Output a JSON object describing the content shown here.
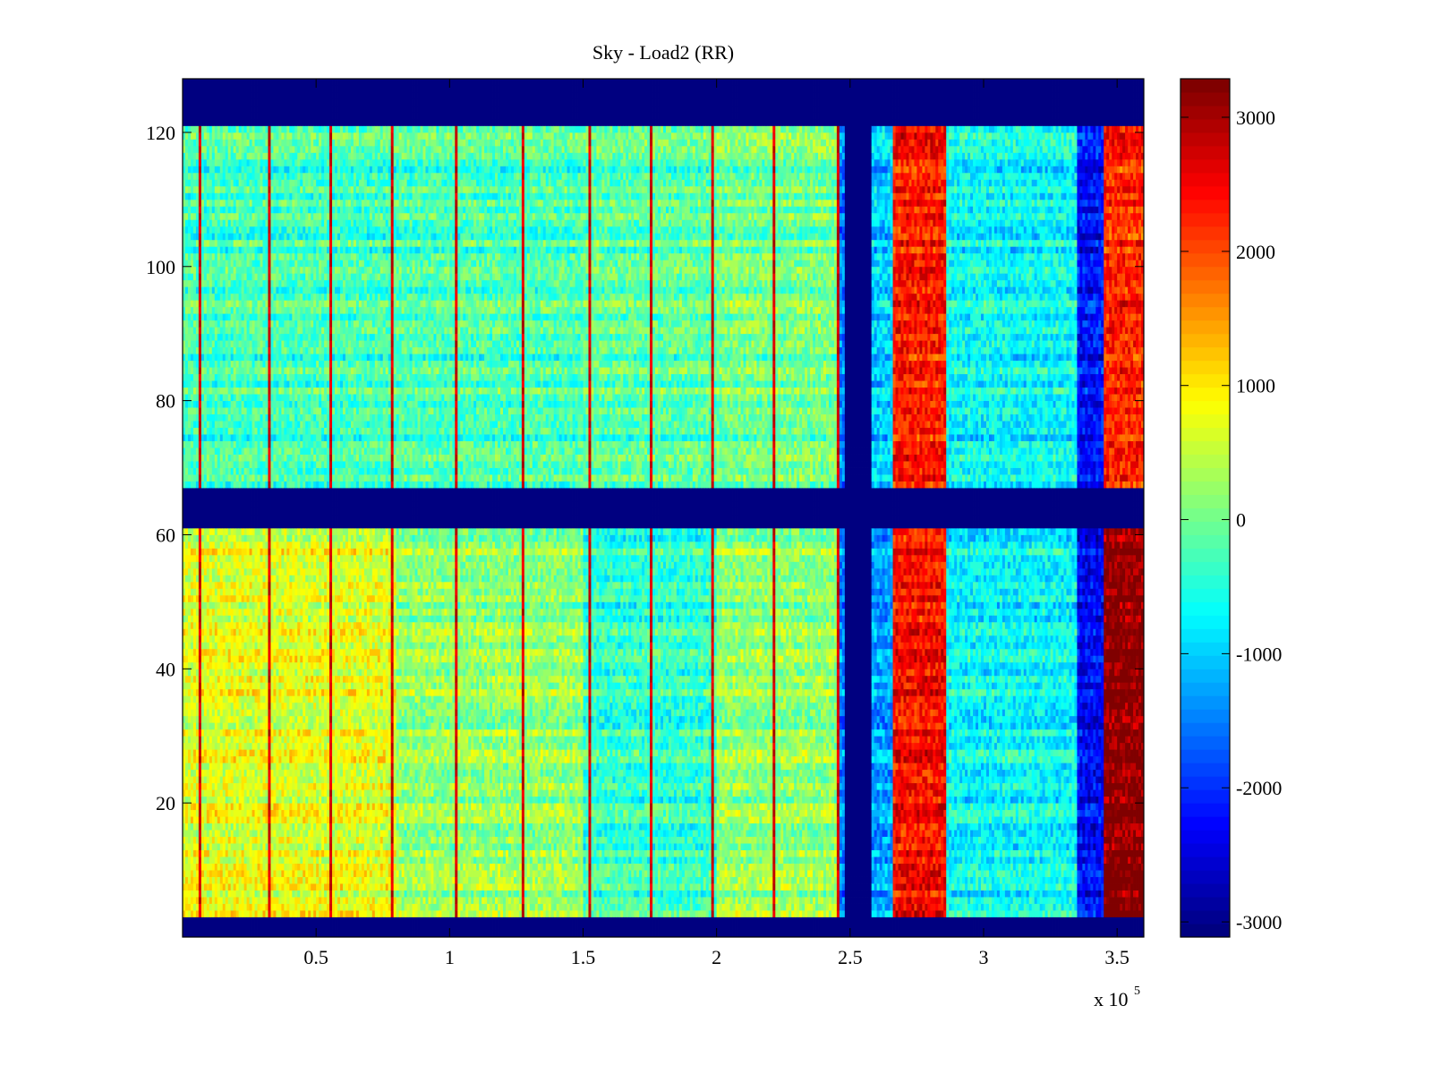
{
  "chart_data": {
    "type": "heatmap",
    "title": "Sky - Load2 (RR)",
    "xlabel": "",
    "ylabel": "",
    "x_exponent_label": "x 10",
    "x_exponent_power": "5",
    "xlim": [
      0,
      3.6
    ],
    "ylim": [
      0,
      128
    ],
    "x_ticks": [
      0.5,
      1,
      1.5,
      2,
      2.5,
      3,
      3.5
    ],
    "x_tick_labels": [
      "0.5",
      "1",
      "1.5",
      "2",
      "2.5",
      "3",
      "3.5"
    ],
    "y_ticks": [
      20,
      40,
      60,
      80,
      100,
      120
    ],
    "y_tick_labels": [
      "20",
      "40",
      "60",
      "80",
      "100",
      "120"
    ],
    "colormap": "jet",
    "clim": [
      -3113,
      3287
    ],
    "colorbar_ticks": [
      -3000,
      -2000,
      -1000,
      0,
      1000,
      2000,
      3000
    ],
    "colorbar_tick_labels": [
      "-3000",
      "-2000",
      "-1000",
      "0",
      "1000",
      "2000",
      "3000"
    ],
    "masked_rows": [
      [
        0,
        3
      ],
      [
        61,
        67
      ],
      [
        121,
        128
      ]
    ],
    "masked_columns": [
      [
        2.48,
        2.58
      ]
    ],
    "masked_value": -3113,
    "spike_columns": [
      0.06,
      0.32,
      0.55,
      0.78,
      1.02,
      1.27,
      1.52,
      1.75,
      1.98,
      2.21,
      2.45
    ],
    "column_bands": [
      {
        "x": [
          0.0,
          0.8
        ],
        "upper_mean": -300,
        "lower_mean": 700
      },
      {
        "x": [
          0.8,
          1.5
        ],
        "upper_mean": -250,
        "lower_mean": 200
      },
      {
        "x": [
          1.5,
          2.0
        ],
        "upper_mean": -150,
        "lower_mean": -400
      },
      {
        "x": [
          2.0,
          2.45
        ],
        "upper_mean": 0,
        "lower_mean": 200
      },
      {
        "x": [
          2.45,
          2.48
        ],
        "upper_mean": -1500,
        "lower_mean": -1500
      },
      {
        "x": [
          2.58,
          2.66
        ],
        "upper_mean": -1000,
        "lower_mean": -1300
      },
      {
        "x": [
          2.66,
          2.86
        ],
        "upper_mean": 2300,
        "lower_mean": 2400
      },
      {
        "x": [
          2.86,
          3.35
        ],
        "upper_mean": -700,
        "lower_mean": -700
      },
      {
        "x": [
          3.35,
          3.45
        ],
        "upper_mean": -2200,
        "lower_mean": -2300
      },
      {
        "x": [
          3.45,
          3.6
        ],
        "upper_mean": 2200,
        "lower_mean": 3200
      }
    ],
    "grid": false,
    "colorbar_position": "right"
  }
}
